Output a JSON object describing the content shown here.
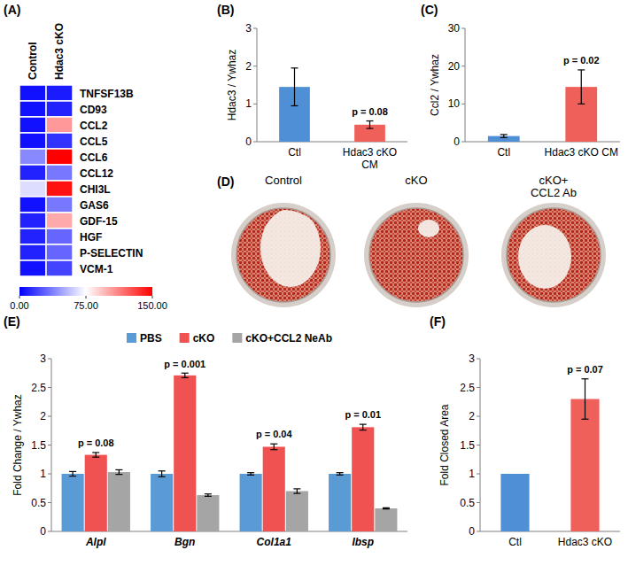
{
  "chart_data": [
    {
      "type": "heatmap",
      "panel": "(A)",
      "columns": [
        "Control",
        "Hdac3 cKO"
      ],
      "rows": [
        "TNFSF13B",
        "CD93",
        "CCL2",
        "CCL5",
        "CCL6",
        "CCL12",
        "CHI3L",
        "GAS6",
        "GDF-15",
        "HGF",
        "P-SELECTIN",
        "VCM-1"
      ],
      "cells": [
        [
          5,
          8
        ],
        [
          5,
          10
        ],
        [
          5,
          105
        ],
        [
          5,
          15
        ],
        [
          40,
          150
        ],
        [
          10,
          35
        ],
        [
          65,
          145
        ],
        [
          5,
          35
        ],
        [
          10,
          100
        ],
        [
          10,
          30
        ],
        [
          10,
          30
        ],
        [
          5,
          20
        ]
      ],
      "color_range": [
        0,
        150
      ],
      "color_ticks": [
        {
          "value": 0,
          "label": "0.00"
        },
        {
          "value": 75,
          "label": "75.00"
        },
        {
          "value": 150,
          "label": "150.00"
        }
      ]
    },
    {
      "type": "bar",
      "panel": "(B)",
      "categories": [
        "Ctl",
        "Hdac3 cKO CM"
      ],
      "values": [
        1.45,
        0.45
      ],
      "errors": [
        0.5,
        0.1
      ],
      "colors": [
        "#4f8fd6",
        "#f0605a"
      ],
      "ylabel": "Hdac3 / Ywhaz",
      "ylim": [
        0,
        3
      ],
      "yticks": [
        0,
        1,
        2,
        3
      ],
      "p_labels": [
        null,
        "p = 0.08"
      ],
      "grid": false
    },
    {
      "type": "bar",
      "panel": "(C)",
      "categories": [
        "Ctl",
        "Hdac3 cKO CM"
      ],
      "values": [
        1.5,
        14.5
      ],
      "errors": [
        0.4,
        4.5
      ],
      "colors": [
        "#4f8fd6",
        "#f0605a"
      ],
      "ylabel": "Ccl2 / Ywhaz",
      "ylim": [
        0,
        30
      ],
      "yticks": [
        0,
        10,
        20,
        30
      ],
      "p_labels": [
        null,
        "p = 0.02"
      ],
      "grid": false
    },
    {
      "type": "bar",
      "panel": "(E)",
      "categories": [
        "Alpl",
        "Bgn",
        "Col1a1",
        "Ibsp"
      ],
      "series": [
        {
          "name": "PBS",
          "color": "#5b9bd5",
          "values": [
            1,
            1,
            1,
            1
          ],
          "errors": [
            0.04,
            0.05,
            0.02,
            0.02
          ]
        },
        {
          "name": "cKO",
          "color": "#f05252",
          "values": [
            1.33,
            2.71,
            1.47,
            1.81
          ],
          "errors": [
            0.04,
            0.04,
            0.05,
            0.05
          ]
        },
        {
          "name": "cKO+CCL2 NeAb",
          "color": "#a5a5a5",
          "values": [
            1.03,
            0.63,
            0.7,
            0.4
          ],
          "errors": [
            0.04,
            0.02,
            0.04,
            0.01
          ]
        }
      ],
      "ylabel": "Fold Change / Ywhaz",
      "ylim": [
        0,
        3
      ],
      "yticks": [
        0,
        0.5,
        1,
        1.5,
        2,
        2.5,
        3
      ],
      "p_labels": [
        "p = 0.08",
        "p = 0.001",
        "p = 0.04",
        "p = 0.01"
      ],
      "legend": "top",
      "grid": false
    },
    {
      "type": "bar",
      "panel": "(F)",
      "categories": [
        "Ctl",
        "Hdac3 cKO"
      ],
      "values": [
        1,
        2.3
      ],
      "errors": [
        null,
        0.35
      ],
      "colors": [
        "#4f8fd6",
        "#f0605a"
      ],
      "ylabel": "Fold Closed Area",
      "ylim": [
        0,
        3
      ],
      "yticks": [
        0,
        0.5,
        1,
        1.5,
        2,
        2.5,
        3
      ],
      "p_labels": [
        null,
        "p = 0.07"
      ],
      "grid": false
    }
  ],
  "image_panel": {
    "panel": "(D)",
    "labels": [
      "Control",
      "cKO",
      "cKO+ CCL2 Ab"
    ]
  }
}
